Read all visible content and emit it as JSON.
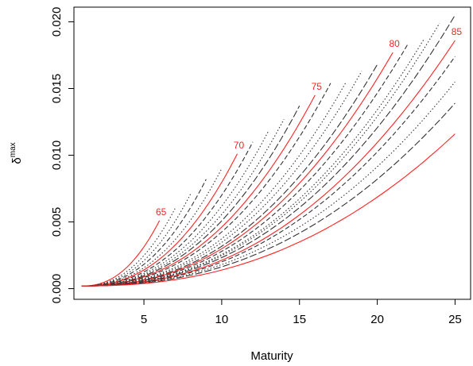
{
  "chart_data": {
    "type": "line",
    "xlabel": "Maturity",
    "ylabel_symbol": "δ",
    "ylabel_superscript": "max",
    "xlim": [
      0.5,
      26
    ],
    "ylim": [
      -0.0008,
      0.0211
    ],
    "x_ticks": [
      5,
      10,
      15,
      20,
      25
    ],
    "x_tick_labels": [
      "5",
      "10",
      "15",
      "20",
      "25"
    ],
    "y_ticks": [
      0.0,
      0.005,
      0.01,
      0.015,
      0.02
    ],
    "y_tick_labels": [
      "0.000",
      "0.005",
      "0.010",
      "0.015",
      "0.020"
    ],
    "grid": false,
    "legend": "none",
    "x_start": 1,
    "colors": {
      "highlight": "#ff2222",
      "other": "#333333"
    },
    "series": [
      {
        "label": "65",
        "end_maturity": 6,
        "end_value": 0.0051,
        "style": "solid",
        "color": "highlight"
      },
      {
        "end_maturity": 7,
        "end_value": 0.006,
        "style": "dotted",
        "color": "other"
      },
      {
        "end_maturity": 8,
        "end_value": 0.0071,
        "style": "dotted",
        "color": "other"
      },
      {
        "end_maturity": 9,
        "end_value": 0.0082,
        "style": "dashed",
        "color": "other"
      },
      {
        "end_maturity": 10,
        "end_value": 0.009,
        "style": "dotted",
        "color": "other"
      },
      {
        "label": "70",
        "end_maturity": 11,
        "end_value": 0.0101,
        "style": "solid",
        "color": "highlight"
      },
      {
        "end_maturity": 12,
        "end_value": 0.011,
        "style": "dashed",
        "color": "other"
      },
      {
        "end_maturity": 13,
        "end_value": 0.0118,
        "style": "dotted",
        "color": "other"
      },
      {
        "end_maturity": 14,
        "end_value": 0.0127,
        "style": "dotted",
        "color": "other"
      },
      {
        "end_maturity": 15,
        "end_value": 0.0137,
        "style": "longdash",
        "color": "other"
      },
      {
        "label": "75",
        "end_maturity": 16,
        "end_value": 0.0145,
        "style": "solid",
        "color": "highlight"
      },
      {
        "end_maturity": 17,
        "end_value": 0.0154,
        "style": "dashed",
        "color": "other"
      },
      {
        "end_maturity": 18,
        "end_value": 0.0155,
        "style": "dotted",
        "color": "other"
      },
      {
        "end_maturity": 19,
        "end_value": 0.0163,
        "style": "dotted",
        "color": "other"
      },
      {
        "end_maturity": 20,
        "end_value": 0.0168,
        "style": "longdash",
        "color": "other"
      },
      {
        "label": "80",
        "end_maturity": 21,
        "end_value": 0.0177,
        "style": "solid",
        "color": "highlight"
      },
      {
        "end_maturity": 22,
        "end_value": 0.0184,
        "style": "dashed",
        "color": "other"
      },
      {
        "end_maturity": 23,
        "end_value": 0.0187,
        "style": "dotted",
        "color": "other"
      },
      {
        "end_maturity": 24,
        "end_value": 0.0199,
        "style": "dotted",
        "color": "other"
      },
      {
        "end_maturity": 25,
        "end_value": 0.0205,
        "style": "longdash",
        "color": "other"
      },
      {
        "label": "85",
        "end_maturity": 25,
        "end_value": 0.0186,
        "style": "solid",
        "color": "highlight"
      },
      {
        "end_maturity": 25,
        "end_value": 0.0174,
        "style": "dashed",
        "color": "other"
      },
      {
        "end_maturity": 25,
        "end_value": 0.0155,
        "style": "dotted",
        "color": "other"
      },
      {
        "end_maturity": 25,
        "end_value": 0.0139,
        "style": "longdash",
        "color": "other"
      },
      {
        "end_maturity": 25,
        "end_value": 0.0116,
        "style": "solid",
        "color": "highlight"
      }
    ]
  }
}
